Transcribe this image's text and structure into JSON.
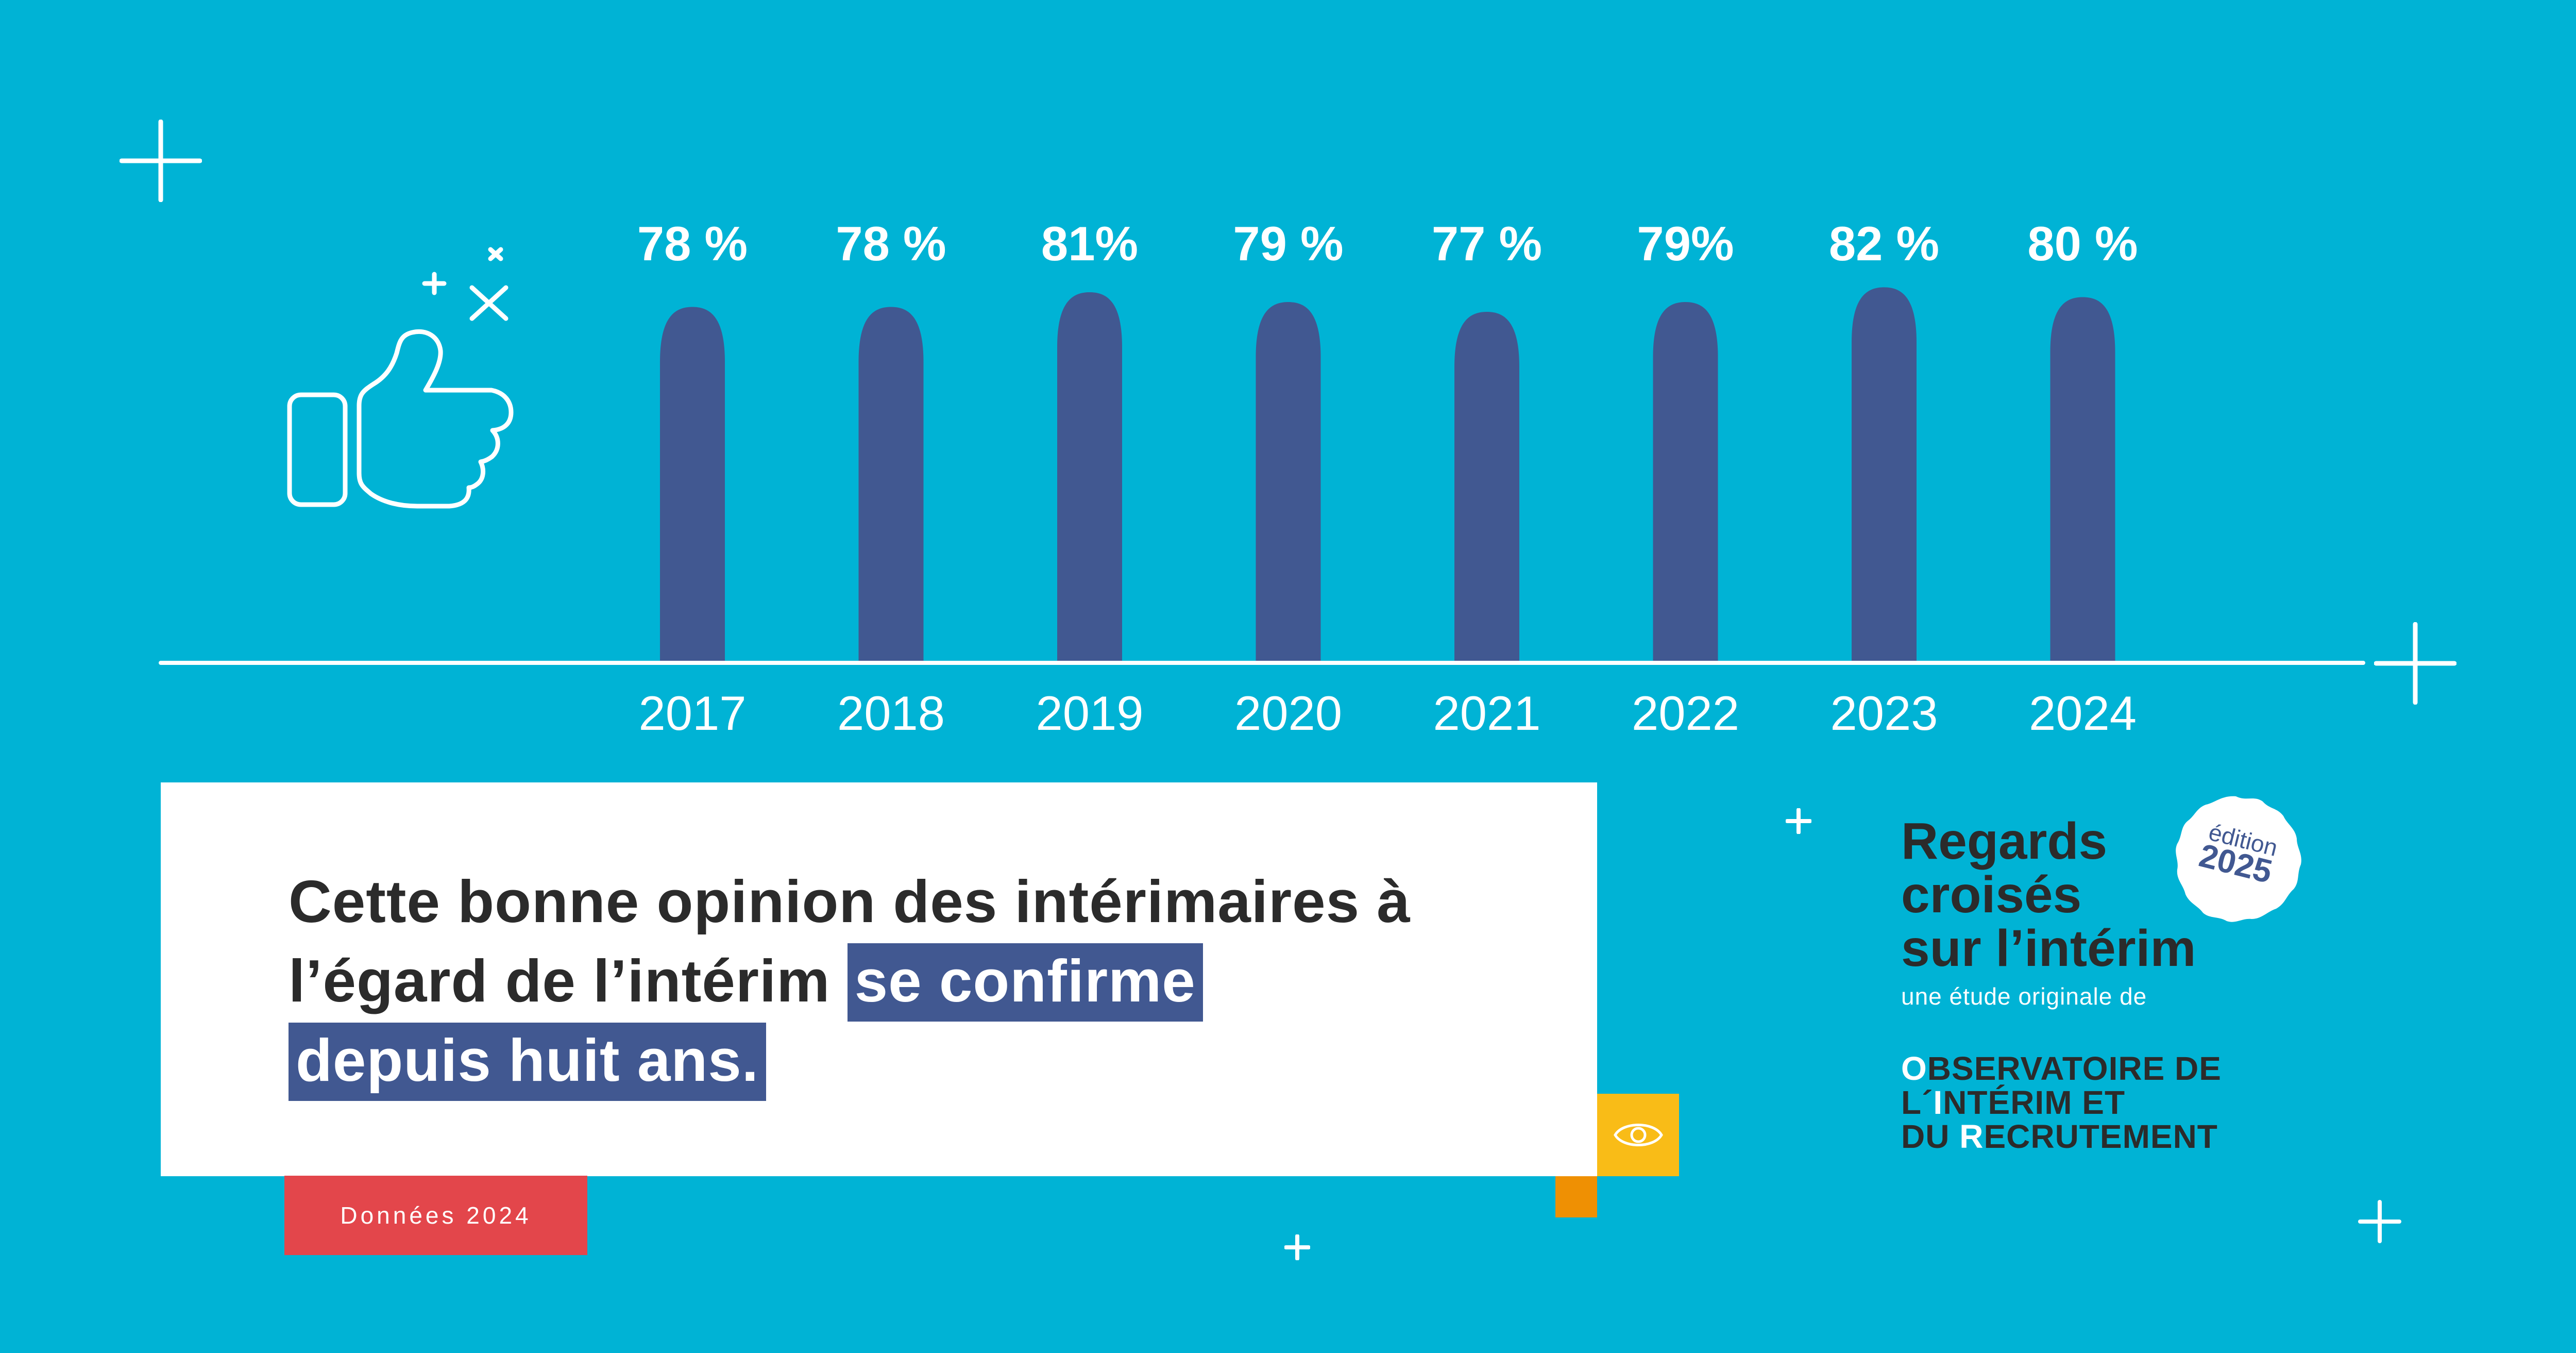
{
  "colors": {
    "background": "#00b3d5",
    "bar": "#415891",
    "axis": "#ffffff",
    "card": "#ffffff",
    "highlight": "#415891",
    "tag": "#e3464b",
    "yellow": "#f9bc17",
    "orange": "#ef9003",
    "dark_text": "#2b2b2b"
  },
  "chart_data": {
    "type": "bar",
    "title": "",
    "xlabel": "",
    "ylabel": "",
    "categories": [
      "2017",
      "2018",
      "2019",
      "2020",
      "2021",
      "2022",
      "2023",
      "2024"
    ],
    "values": [
      78,
      78,
      81,
      79,
      77,
      79,
      82,
      80
    ],
    "labels": [
      "78 %",
      "78 %",
      "81%",
      "79 %",
      "77 %",
      "79%",
      "82 %",
      "80 %"
    ],
    "unit": "%",
    "ylim": [
      5.5,
      100
    ],
    "grid": false,
    "legend": "none",
    "bar_style": "rounded-top"
  },
  "icons": {
    "main": "thumbs-up-icon",
    "accent": "eye-icon"
  },
  "headline": {
    "part1": "Cette bonne opinion des intérimaires à l’égard de l’intérim",
    "highlight1": "se confirme",
    "highlight2": "depuis huit ans."
  },
  "tag": {
    "label": "Données 2024"
  },
  "brand": {
    "title": "Regards\ncroisés\nsur l’intérim",
    "subtitle": "une étude originale de",
    "badge_top": "édition",
    "badge_year": "2025",
    "org_line1_first": "O",
    "org_line1_rest": "BSERVATOIRE DE",
    "org_line2_a": "L´",
    "org_line2_first": "I",
    "org_line2_rest": "NTÉRIM ET",
    "org_line3_a": "DU ",
    "org_line3_first": "R",
    "org_line3_rest": "ECRUTEMENT"
  }
}
